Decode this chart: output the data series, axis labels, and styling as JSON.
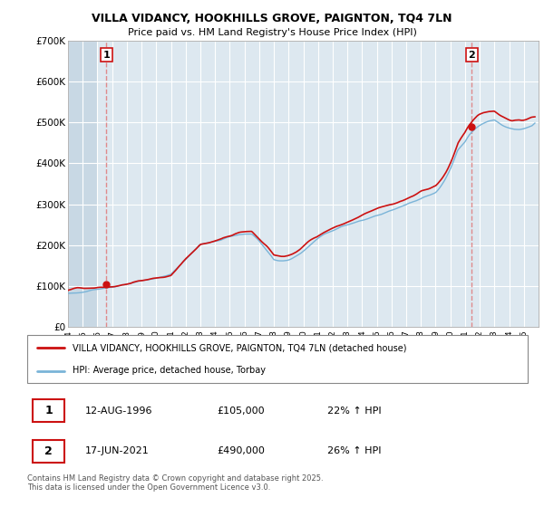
{
  "title": "VILLA VIDANCY, HOOKHILLS GROVE, PAIGNTON, TQ4 7LN",
  "subtitle": "Price paid vs. HM Land Registry's House Price Index (HPI)",
  "legend_line1": "VILLA VIDANCY, HOOKHILLS GROVE, PAIGNTON, TQ4 7LN (detached house)",
  "legend_line2": "HPI: Average price, detached house, Torbay",
  "transaction1_date": "12-AUG-1996",
  "transaction1_price": "£105,000",
  "transaction1_hpi": "22% ↑ HPI",
  "transaction2_date": "17-JUN-2021",
  "transaction2_price": "£490,000",
  "transaction2_hpi": "26% ↑ HPI",
  "footer": "Contains HM Land Registry data © Crown copyright and database right 2025.\nThis data is licensed under the Open Government Licence v3.0.",
  "hpi_color": "#7ab4d8",
  "price_color": "#cc1111",
  "dashed_color": "#e08080",
  "bg_color": "#dde8f0",
  "hatch_color": "#c8d8e4",
  "ylim": [
    0,
    700000
  ],
  "xlim_start": 1994,
  "xlim_end": 2026,
  "transaction1_x": 1996.617,
  "transaction1_y": 105000,
  "transaction2_x": 2021.458,
  "transaction2_y": 490000,
  "yticks": [
    0,
    100000,
    200000,
    300000,
    400000,
    500000,
    600000,
    700000
  ],
  "ytick_labels": [
    "£0",
    "£100K",
    "£200K",
    "£300K",
    "£400K",
    "£500K",
    "£600K",
    "£700K"
  ]
}
